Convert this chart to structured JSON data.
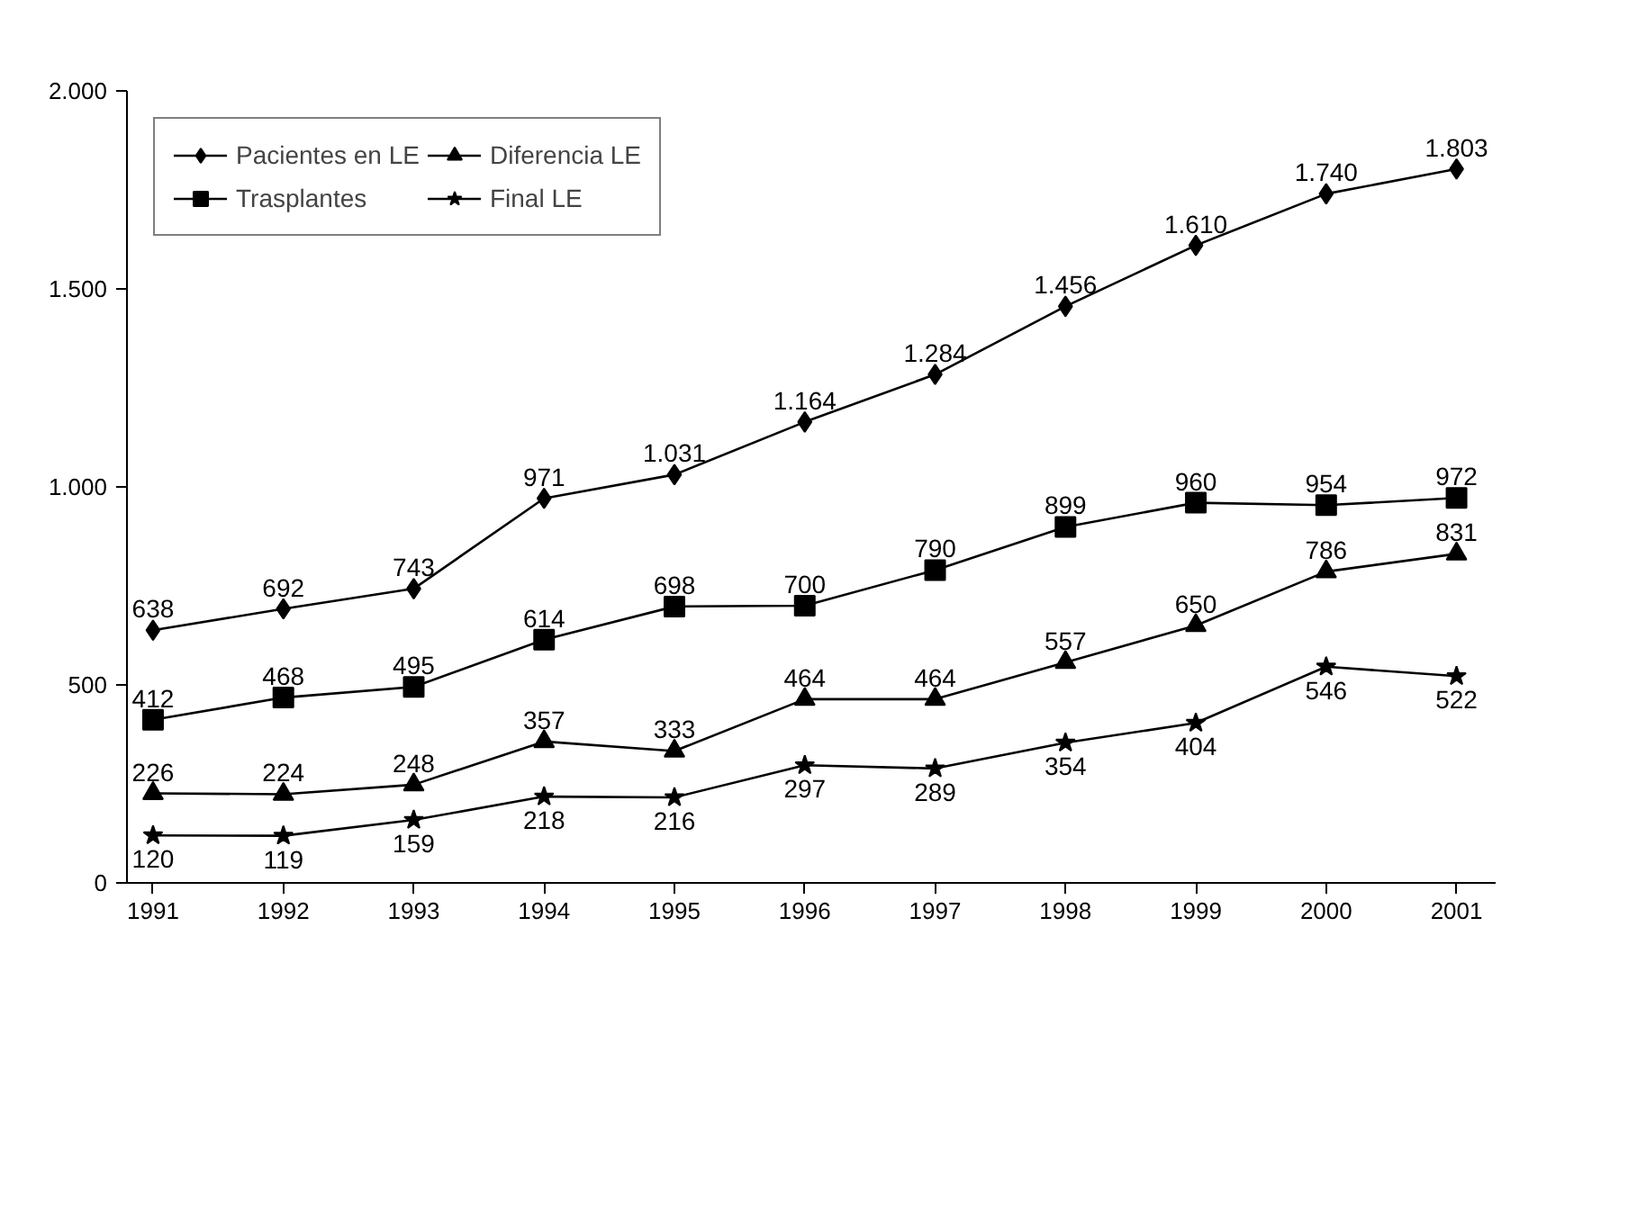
{
  "chart_data": {
    "type": "line",
    "categories": [
      "1991",
      "1992",
      "1993",
      "1994",
      "1995",
      "1996",
      "1997",
      "1998",
      "1999",
      "2000",
      "2001"
    ],
    "series": [
      {
        "name": "Pacientes en LE",
        "color": "#000000",
        "marker": "diamond",
        "values": [
          638,
          692,
          743,
          971,
          1031,
          1164,
          1284,
          1456,
          1610,
          1740,
          1803
        ],
        "value_labels": [
          "638",
          "692",
          "743",
          "971",
          "1.031",
          "1.164",
          "1.284",
          "1.456",
          "1.610",
          "1.740",
          "1.803"
        ]
      },
      {
        "name": "Trasplantes",
        "color": "#000000",
        "marker": "square",
        "values": [
          412,
          468,
          495,
          614,
          698,
          700,
          790,
          899,
          960,
          954,
          972
        ],
        "value_labels": [
          "412",
          "468",
          "495",
          "614",
          "698",
          "700",
          "790",
          "899",
          "960",
          "954",
          "972"
        ]
      },
      {
        "name": "Diferencia LE",
        "color": "#000000",
        "marker": "triangle",
        "values": [
          226,
          224,
          248,
          357,
          333,
          464,
          464,
          557,
          650,
          786,
          831
        ],
        "value_labels": [
          "226",
          "224",
          "248",
          "357",
          "333",
          "464",
          "464",
          "557",
          "650",
          "786",
          "831"
        ]
      },
      {
        "name": "Final LE",
        "color": "#000000",
        "marker": "star",
        "values": [
          120,
          119,
          159,
          218,
          216,
          297,
          289,
          354,
          404,
          546,
          522
        ],
        "value_labels": [
          "120",
          "119",
          "159",
          "218",
          "216",
          "297",
          "289",
          "354",
          "404",
          "546",
          "522"
        ]
      }
    ],
    "ylim": [
      0,
      2000
    ],
    "yticks": [
      {
        "value": 0,
        "label": "0"
      },
      {
        "value": 500,
        "label": "500"
      },
      {
        "value": 1000,
        "label": "1.000"
      },
      {
        "value": 1500,
        "label": "1.500"
      },
      {
        "value": 2000,
        "label": "2.000"
      }
    ],
    "grid": false,
    "legend": "top left",
    "line_style": "solid"
  }
}
